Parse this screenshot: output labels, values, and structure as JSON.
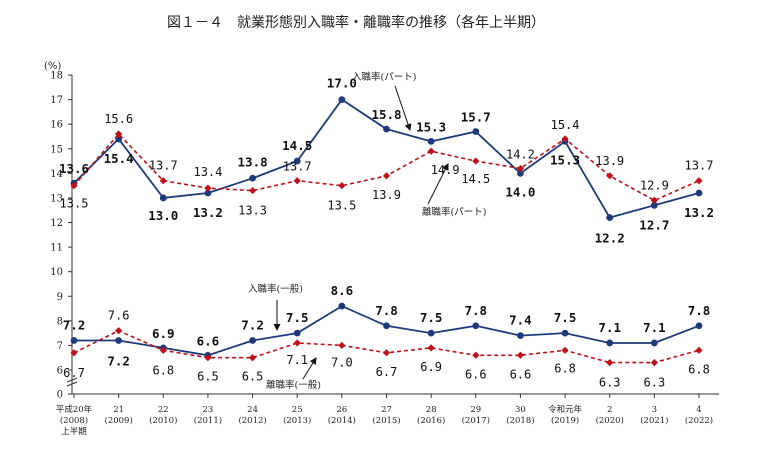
{
  "title": "図１－４　就業形態別入職率・離職率の推移（各年上半期）",
  "chart_data": {
    "type": "line",
    "unit_label": "(%)",
    "ylim": [
      0,
      18
    ],
    "yticks": [
      0,
      6,
      7,
      8,
      9,
      10,
      11,
      12,
      13,
      14,
      15,
      16,
      17,
      18
    ],
    "categories": [
      [
        "平成20年",
        "(2008)",
        "上半期"
      ],
      [
        "21",
        "(2009)"
      ],
      [
        "22",
        "(2010)"
      ],
      [
        "23",
        "(2011)"
      ],
      [
        "24",
        "(2012)"
      ],
      [
        "25",
        "(2013)"
      ],
      [
        "26",
        "(2014)"
      ],
      [
        "27",
        "(2015)"
      ],
      [
        "28",
        "(2016)"
      ],
      [
        "29",
        "(2017)"
      ],
      [
        "30",
        "(2018)"
      ],
      [
        "令和元年",
        "(2019)"
      ],
      [
        "2",
        "(2020)"
      ],
      [
        "3",
        "(2021)"
      ],
      [
        "4",
        "(2022)"
      ]
    ],
    "series": [
      {
        "name": "入職率(パート)",
        "style": "solid",
        "color": "#1f3a7a",
        "values": [
          13.6,
          15.4,
          13.0,
          13.2,
          13.8,
          14.5,
          17.0,
          15.8,
          15.3,
          15.7,
          14.0,
          15.3,
          12.2,
          12.7,
          13.2
        ],
        "labels": [
          "13.6",
          "15.4",
          "13.0",
          "13.2",
          "13.8",
          "14.5",
          "17.0",
          "15.8",
          "15.3",
          "15.7",
          "14.0",
          "15.3",
          "12.2",
          "12.7",
          "13.2"
        ]
      },
      {
        "name": "離職率(パート)",
        "style": "dashed",
        "color": "#c0101a",
        "values": [
          13.5,
          15.6,
          13.7,
          13.4,
          13.3,
          13.7,
          13.5,
          13.9,
          14.9,
          14.5,
          14.2,
          15.4,
          13.9,
          12.9,
          13.7
        ],
        "labels": [
          "13.5",
          "15.6",
          "13.7",
          "13.4",
          "13.3",
          "13.7",
          "13.5",
          "13.9",
          "14.9",
          "14.5",
          "14.2",
          "15.4",
          "13.9",
          "12.9",
          "13.7"
        ]
      },
      {
        "name": "入職率(一般)",
        "style": "solid",
        "color": "#1f3a7a",
        "values": [
          7.2,
          7.2,
          6.9,
          6.6,
          7.2,
          7.5,
          8.6,
          7.8,
          7.5,
          7.8,
          7.4,
          7.5,
          7.1,
          7.1,
          7.8
        ],
        "labels": [
          "7.2",
          "7.2",
          "6.9",
          "6.6",
          "7.2",
          "7.5",
          "8.6",
          "7.8",
          "7.5",
          "7.8",
          "7.4",
          "7.5",
          "7.1",
          "7.1",
          "7.8"
        ]
      },
      {
        "name": "離職率(一般)",
        "style": "dashed",
        "color": "#c0101a",
        "values": [
          6.7,
          7.6,
          6.8,
          6.5,
          6.5,
          7.1,
          7.0,
          6.7,
          6.9,
          6.6,
          6.6,
          6.8,
          6.3,
          6.3,
          6.8
        ],
        "labels": [
          "6.7",
          "7.6",
          "6.8",
          "6.5",
          "6.5",
          "7.1",
          "7.0",
          "6.7",
          "6.9",
          "6.6",
          "6.6",
          "6.8",
          "6.3",
          "6.3",
          "6.8"
        ]
      }
    ],
    "annotations": [
      {
        "text": "入職率(パート)",
        "series": 0
      },
      {
        "text": "離職率(パート)",
        "series": 1
      },
      {
        "text": "入職率(一般)",
        "series": 2
      },
      {
        "text": "離職率(一般)",
        "series": 3
      }
    ]
  }
}
